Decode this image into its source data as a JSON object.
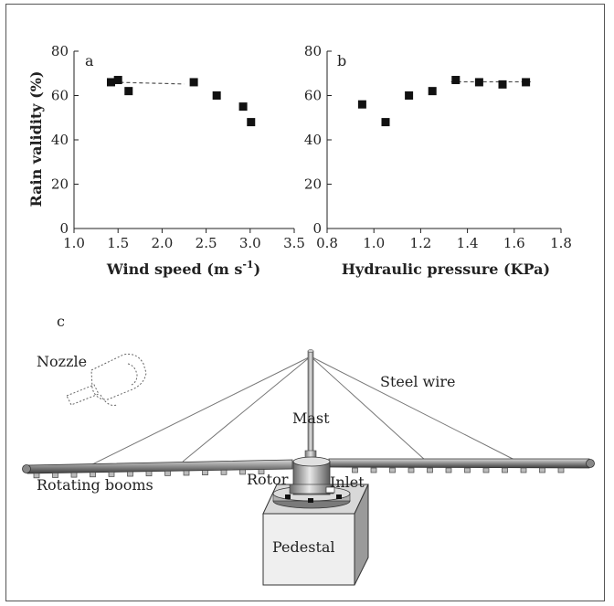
{
  "chart_data": [
    {
      "type": "scatter",
      "panel_label": "a",
      "xlabel": "Wind speed (m s",
      "xlabel_sup": "-1",
      "xlabel_end": ")",
      "ylabel": "Rain validity (%)",
      "xlim": [
        1.0,
        3.5
      ],
      "ylim": [
        0,
        80
      ],
      "xticks": [
        "1.0",
        "1.5",
        "2.0",
        "2.5",
        "3.0",
        "3.5"
      ],
      "yticks": [
        "0",
        "20",
        "40",
        "60",
        "80"
      ],
      "x": [
        1.42,
        1.5,
        1.62,
        2.36,
        2.62,
        2.92,
        3.01
      ],
      "y": [
        66,
        67,
        62,
        66,
        60,
        55,
        48
      ],
      "trend": {
        "style": "dashed",
        "x": [
          1.45,
          2.25
        ],
        "y": [
          66,
          65.2
        ]
      }
    },
    {
      "type": "scatter",
      "panel_label": "b",
      "xlabel": "Hydraulic pressure (KPa)",
      "xlim": [
        0.8,
        1.8
      ],
      "ylim": [
        0,
        80
      ],
      "xticks": [
        "0.8",
        "1.0",
        "1.2",
        "1.4",
        "1.6",
        "1.8"
      ],
      "yticks": [
        "0",
        "20",
        "40",
        "60",
        "80"
      ],
      "x": [
        0.95,
        1.05,
        1.15,
        1.25,
        1.35,
        1.45,
        1.55,
        1.65
      ],
      "y": [
        56,
        48,
        60,
        62,
        67,
        66,
        65,
        66
      ],
      "trend": {
        "style": "dashed",
        "x": [
          1.33,
          1.67
        ],
        "y": [
          66.2,
          66.2
        ]
      }
    }
  ],
  "diagram": {
    "panel_label": "c",
    "labels": {
      "nozzle": "Nozzle",
      "steel_wire": "Steel wire",
      "mast": "Mast",
      "rotor": "Rotor",
      "inlet": "Inlet",
      "rotating_booms": "Rotating booms",
      "pedestal": "Pedestal"
    }
  }
}
